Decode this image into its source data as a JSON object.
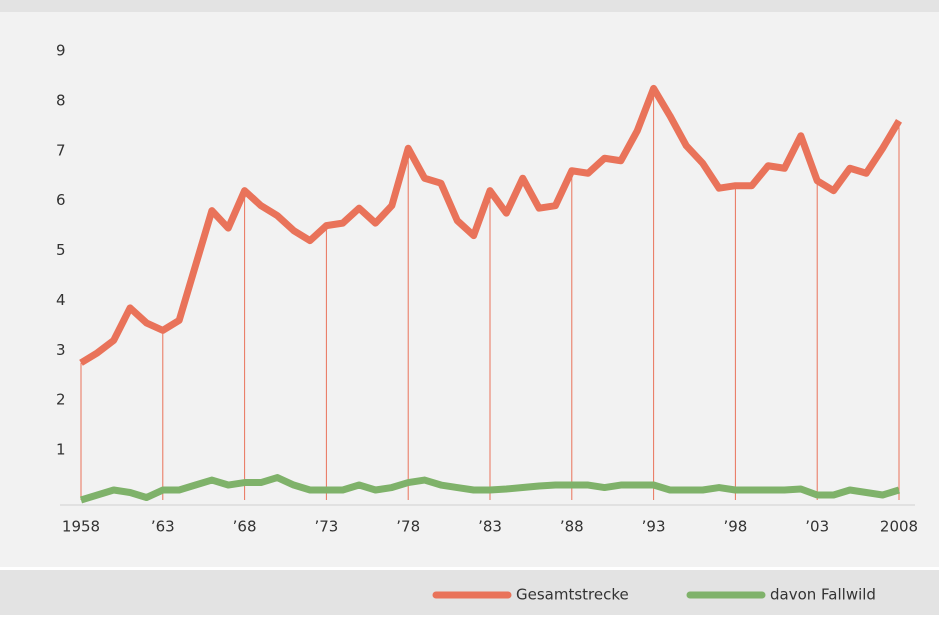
{
  "chart_data": {
    "type": "line",
    "x": [
      1958,
      1959,
      1960,
      1961,
      1962,
      1963,
      1964,
      1965,
      1966,
      1967,
      1968,
      1969,
      1970,
      1971,
      1972,
      1973,
      1974,
      1975,
      1976,
      1977,
      1978,
      1979,
      1980,
      1981,
      1982,
      1983,
      1984,
      1985,
      1986,
      1987,
      1988,
      1989,
      1990,
      1991,
      1992,
      1993,
      1994,
      1995,
      1996,
      1997,
      1998,
      1999,
      2000,
      2001,
      2002,
      2003,
      2004,
      2005,
      2006,
      2007,
      2008
    ],
    "series": [
      {
        "name": "Gesamtstrecke",
        "color": "#e9735a",
        "values": [
          2.75,
          2.95,
          3.2,
          3.85,
          3.55,
          3.4,
          3.6,
          4.7,
          5.8,
          5.45,
          6.2,
          5.9,
          5.7,
          5.4,
          5.2,
          5.5,
          5.55,
          5.85,
          5.55,
          5.9,
          7.05,
          6.45,
          6.35,
          5.6,
          5.3,
          6.2,
          5.75,
          6.45,
          5.85,
          5.9,
          6.6,
          6.55,
          6.85,
          6.8,
          7.4,
          8.25,
          7.7,
          7.1,
          6.75,
          6.25,
          6.3,
          6.3,
          6.7,
          6.65,
          7.3,
          6.4,
          6.2,
          6.65,
          6.55,
          7.05,
          7.6
        ]
      },
      {
        "name": "davon Fallwild",
        "color": "#7fb26a",
        "values": [
          0,
          0.1,
          0.2,
          0.15,
          0.05,
          0.2,
          0.2,
          0.3,
          0.4,
          0.3,
          0.35,
          0.35,
          0.45,
          0.3,
          0.2,
          0.2,
          0.2,
          0.3,
          0.2,
          0.25,
          0.35,
          0.4,
          0.3,
          0.25,
          0.2,
          0.2,
          0.22,
          0.25,
          0.28,
          0.3,
          0.3,
          0.3,
          0.25,
          0.3,
          0.3,
          0.3,
          0.2,
          0.2,
          0.2,
          0.25,
          0.2,
          0.2,
          0.2,
          0.2,
          0.22,
          0.1,
          0.1,
          0.2,
          0.15,
          0.1,
          0.2
        ]
      }
    ],
    "xlim": [
      1958,
      2008
    ],
    "xticks": [
      1958,
      {
        "value": 1963,
        "label": "’63"
      },
      {
        "value": 1968,
        "label": "’68"
      },
      {
        "value": 1973,
        "label": "’73"
      },
      {
        "value": 1978,
        "label": "’78"
      },
      {
        "value": 1983,
        "label": "’83"
      },
      {
        "value": 1988,
        "label": "’88"
      },
      {
        "value": 1993,
        "label": "’93"
      },
      {
        "value": 1998,
        "label": "’98"
      },
      {
        "value": 2003,
        "label": "’03"
      },
      2008
    ],
    "ylim": [
      0,
      9
    ],
    "yticks": [
      1,
      2,
      3,
      4,
      5,
      6,
      7,
      8,
      9
    ],
    "drop_lines": true,
    "legend": "bottom-right"
  }
}
